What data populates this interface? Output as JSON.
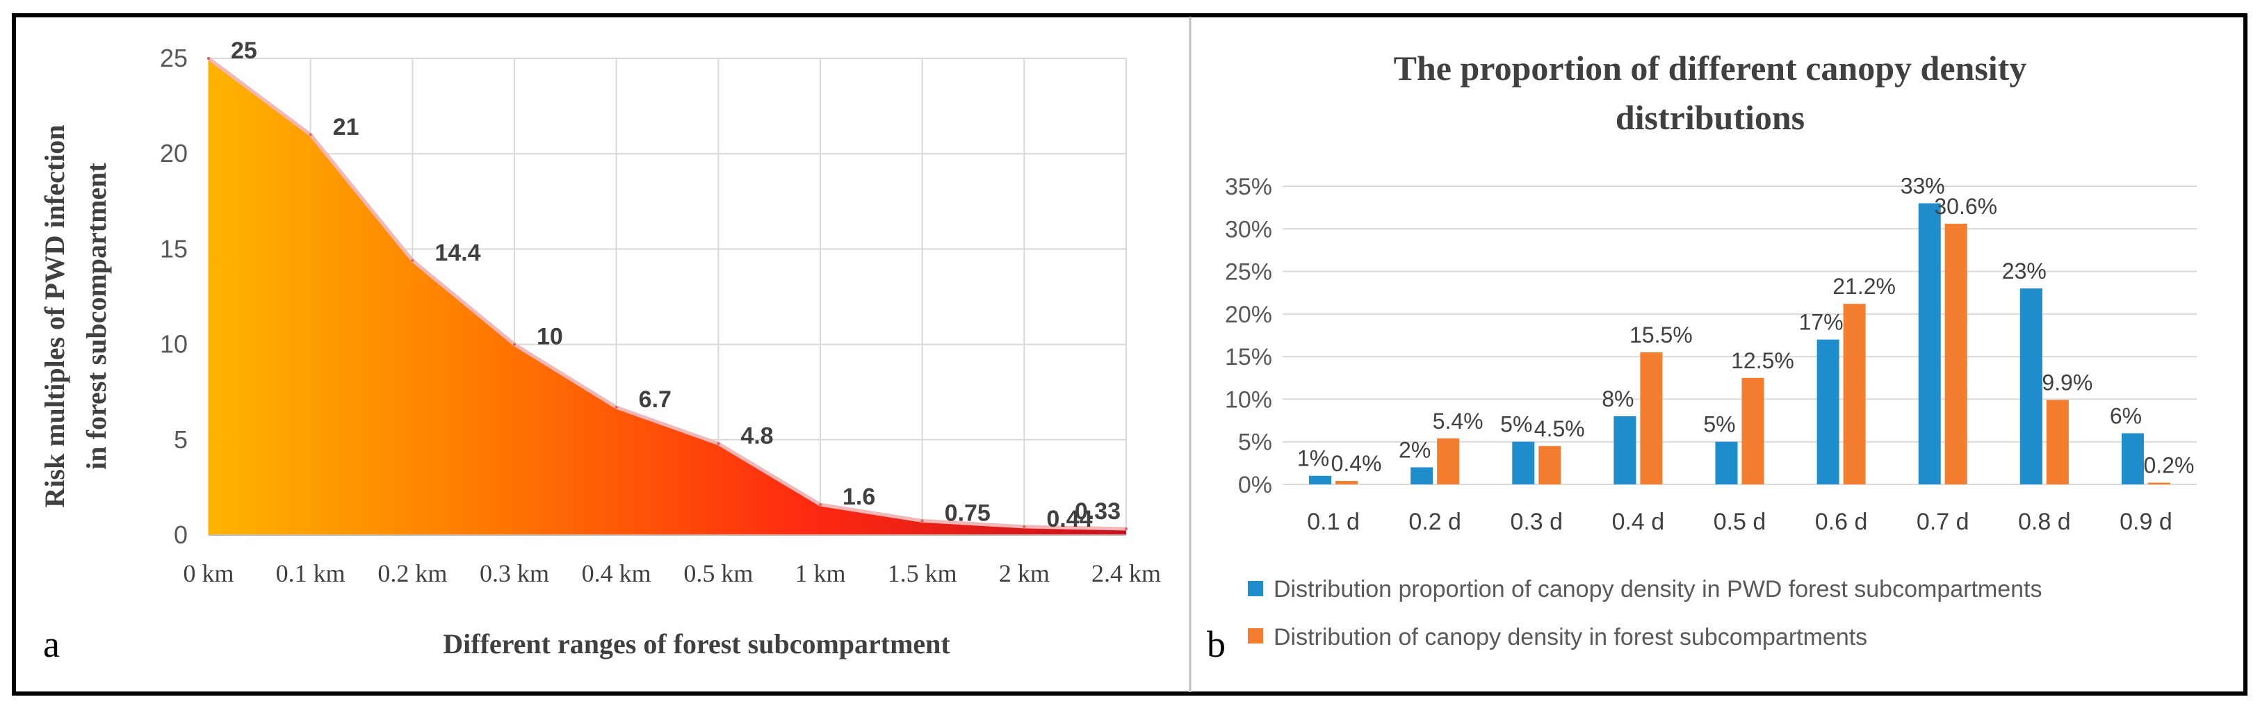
{
  "panel_a_label": "a",
  "panel_b_label": "b",
  "chart_data": [
    {
      "type": "area",
      "title": "",
      "xlabel": "Different ranges of forest subcompartment",
      "ylabel_lines": [
        "Risk multiples of PWD infection",
        "in forest subcompartment"
      ],
      "categories": [
        "0 km",
        "0.1 km",
        "0.2 km",
        "0.3 km",
        "0.4 km",
        "0.5 km",
        "1 km",
        "1.5 km",
        "2 km",
        "2.4 km"
      ],
      "values": [
        25,
        21,
        14.4,
        10,
        6.7,
        4.8,
        1.6,
        0.75,
        0.44,
        0.33
      ],
      "data_labels": [
        "25",
        "21",
        "14.4",
        "10",
        "6.7",
        "4.8",
        "1.6",
        "0.75",
        "0.44",
        "0.33"
      ],
      "ylim": [
        0,
        25
      ],
      "yticks": [
        "0",
        "5",
        "10",
        "15",
        "20",
        "25"
      ],
      "grid": true,
      "gradient_colors": [
        "#ffb400",
        "#ff7a00",
        "#ff2a10",
        "#c8101e"
      ]
    },
    {
      "type": "bar",
      "title_lines": [
        "The proportion of different canopy density",
        "distributions"
      ],
      "categories": [
        "0.1 d",
        "0.2 d",
        "0.3 d",
        "0.4 d",
        "0.5 d",
        "0.6 d",
        "0.7 d",
        "0.8 d",
        "0.9 d"
      ],
      "ylim": [
        0,
        35
      ],
      "yticks": [
        "0%",
        "5%",
        "10%",
        "15%",
        "20%",
        "25%",
        "30%",
        "35%"
      ],
      "grid": true,
      "legend_position": "bottom",
      "series": [
        {
          "name": "Distribution proportion of canopy density in PWD forest subcompartments",
          "color": "#1f8ccc",
          "values": [
            1,
            2,
            5,
            8,
            5,
            17,
            33,
            23,
            6
          ],
          "labels": [
            "1%",
            "2%",
            "5%",
            "8%",
            "5%",
            "17%",
            "33%",
            "23%",
            "6%"
          ]
        },
        {
          "name": "Distribution of canopy density in forest subcompartments",
          "color": "#f47d30",
          "values": [
            0.4,
            5.4,
            4.5,
            15.5,
            12.5,
            21.2,
            30.6,
            9.9,
            0.2
          ],
          "labels": [
            "0.4%",
            "5.4%",
            "4.5%",
            "15.5%",
            "12.5%",
            "21.2%",
            "30.6%",
            "9.9%",
            "0.2%"
          ]
        }
      ]
    }
  ]
}
